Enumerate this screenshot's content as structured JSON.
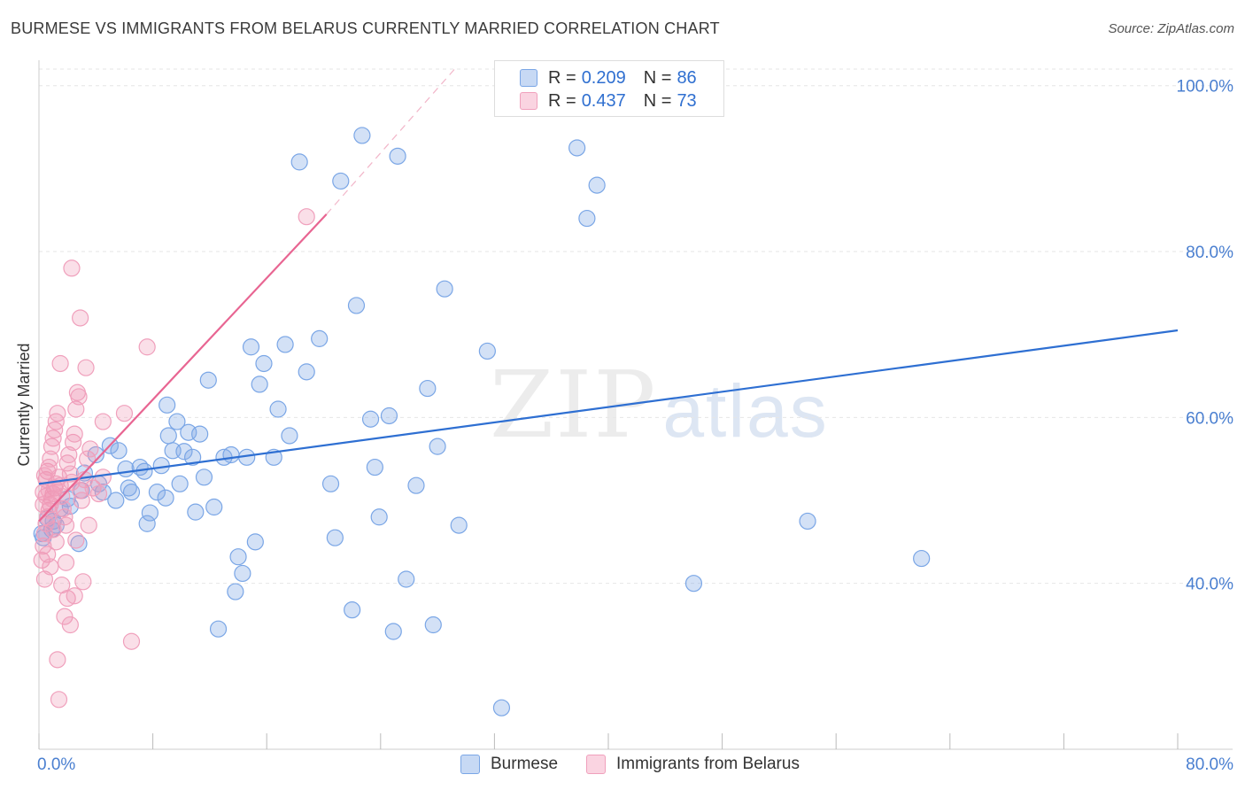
{
  "header": {
    "title": "BURMESE VS IMMIGRANTS FROM BELARUS CURRENTLY MARRIED CORRELATION CHART",
    "source": "Source: ZipAtlas.com"
  },
  "watermark": {
    "zip": "ZIP",
    "atlas": "atlas"
  },
  "legend": {
    "rows": [
      {
        "r_label": "R =",
        "r_value": "0.209",
        "n_label": "N =",
        "n_value": "86"
      },
      {
        "r_label": "R =",
        "r_value": "0.437",
        "n_label": "N =",
        "n_value": "73"
      }
    ]
  },
  "bottom_legend": {
    "items": [
      "Burmese",
      "Immigrants from Belarus"
    ]
  },
  "colors": {
    "blue_fill": "rgba(130,170,230,0.35)",
    "blue_stroke": "#7aa6e6",
    "blue_line": "#2e6fd2",
    "pink_fill": "rgba(240,150,180,0.30)",
    "pink_stroke": "#f0a0bc",
    "pink_line": "#e86592",
    "grid": "#e6e6e6",
    "tick_text": "#4a7fd0"
  },
  "chart_data": {
    "type": "scatter",
    "title": "BURMESE VS IMMIGRANTS FROM BELARUS CURRENTLY MARRIED CORRELATION CHART",
    "xlabel": "",
    "ylabel": "Currently Married",
    "xlim": [
      0,
      80
    ],
    "ylim": [
      20,
      102
    ],
    "x_tick_labels": [
      {
        "value": 0,
        "label": "0.0%"
      },
      {
        "value": 80,
        "label": "80.0%"
      }
    ],
    "y_tick_labels": [
      {
        "value": 40,
        "label": "40.0%"
      },
      {
        "value": 60,
        "label": "60.0%"
      },
      {
        "value": 80,
        "label": "80.0%"
      },
      {
        "value": 100,
        "label": "100.0%"
      }
    ],
    "series": [
      {
        "name": "Burmese",
        "R": 0.209,
        "N": 86,
        "trend": {
          "x": [
            0,
            80
          ],
          "y": [
            52.0,
            70.5
          ]
        },
        "points": [
          [
            0.3,
            45.5
          ],
          [
            0.6,
            47.8
          ],
          [
            0.9,
            46.5
          ],
          [
            1.2,
            47.0
          ],
          [
            1.5,
            49.0
          ],
          [
            2.0,
            50.2
          ],
          [
            2.2,
            49.3
          ],
          [
            3.0,
            51.2
          ],
          [
            3.2,
            53.3
          ],
          [
            4.0,
            55.5
          ],
          [
            4.5,
            51.0
          ],
          [
            5.0,
            56.6
          ],
          [
            5.4,
            50.0
          ],
          [
            5.6,
            56.0
          ],
          [
            6.3,
            51.5
          ],
          [
            6.5,
            51.0
          ],
          [
            7.1,
            54.0
          ],
          [
            7.4,
            53.5
          ],
          [
            7.6,
            47.2
          ],
          [
            7.8,
            48.5
          ],
          [
            8.3,
            51.0
          ],
          [
            8.6,
            54.2
          ],
          [
            8.9,
            50.3
          ],
          [
            9.1,
            57.8
          ],
          [
            9.4,
            56.0
          ],
          [
            9.7,
            59.5
          ],
          [
            9.9,
            52.0
          ],
          [
            10.2,
            55.9
          ],
          [
            10.5,
            58.2
          ],
          [
            10.8,
            55.2
          ],
          [
            11.0,
            48.6
          ],
          [
            11.3,
            58.0
          ],
          [
            11.6,
            52.8
          ],
          [
            11.9,
            64.5
          ],
          [
            12.3,
            49.2
          ],
          [
            12.6,
            34.5
          ],
          [
            13.0,
            55.2
          ],
          [
            13.5,
            55.5
          ],
          [
            13.8,
            39.0
          ],
          [
            14.0,
            43.2
          ],
          [
            14.3,
            41.2
          ],
          [
            14.6,
            55.2
          ],
          [
            14.9,
            68.5
          ],
          [
            15.2,
            45.0
          ],
          [
            15.5,
            64.0
          ],
          [
            15.8,
            66.5
          ],
          [
            16.5,
            55.2
          ],
          [
            16.8,
            61.0
          ],
          [
            17.3,
            68.8
          ],
          [
            17.6,
            57.8
          ],
          [
            18.3,
            90.8
          ],
          [
            18.8,
            65.5
          ],
          [
            19.7,
            69.5
          ],
          [
            20.5,
            52.0
          ],
          [
            20.8,
            45.5
          ],
          [
            21.2,
            88.5
          ],
          [
            22.0,
            36.8
          ],
          [
            22.3,
            73.5
          ],
          [
            22.7,
            94.0
          ],
          [
            23.3,
            59.8
          ],
          [
            23.6,
            54.0
          ],
          [
            23.9,
            48.0
          ],
          [
            24.6,
            60.2
          ],
          [
            24.9,
            34.2
          ],
          [
            25.2,
            91.5
          ],
          [
            25.8,
            40.5
          ],
          [
            26.5,
            51.8
          ],
          [
            27.3,
            63.5
          ],
          [
            27.7,
            35.0
          ],
          [
            28.0,
            56.5
          ],
          [
            28.5,
            75.5
          ],
          [
            29.5,
            47.0
          ],
          [
            31.5,
            68.0
          ],
          [
            32.5,
            25.0
          ],
          [
            37.8,
            92.5
          ],
          [
            38.5,
            84.0
          ],
          [
            39.2,
            88.0
          ],
          [
            46.0,
            40.0
          ],
          [
            54.0,
            47.5
          ],
          [
            62.0,
            43.0
          ],
          [
            0.2,
            46.0
          ],
          [
            1.0,
            47.5
          ],
          [
            2.8,
            44.8
          ],
          [
            6.1,
            53.8
          ],
          [
            9.0,
            61.5
          ],
          [
            4.2,
            52.0
          ]
        ]
      },
      {
        "name": "Immigrants from Belarus",
        "R": 0.437,
        "N": 73,
        "trend": {
          "x": [
            0,
            20.2
          ],
          "y": [
            47.5,
            84.5
          ]
        },
        "trend_extension": {
          "x": [
            20.2,
            29.2
          ],
          "y": [
            84.5,
            102.0
          ]
        },
        "points": [
          [
            0.2,
            42.8
          ],
          [
            0.3,
            44.5
          ],
          [
            0.4,
            46.0
          ],
          [
            0.5,
            47.2
          ],
          [
            0.6,
            48.0
          ],
          [
            0.7,
            48.8
          ],
          [
            0.8,
            49.5
          ],
          [
            0.9,
            50.2
          ],
          [
            1.0,
            50.8
          ],
          [
            1.1,
            51.5
          ],
          [
            1.2,
            52.0
          ],
          [
            0.3,
            51.0
          ],
          [
            0.5,
            52.5
          ],
          [
            0.6,
            53.5
          ],
          [
            0.7,
            54.0
          ],
          [
            0.8,
            55.0
          ],
          [
            0.9,
            56.5
          ],
          [
            1.0,
            57.5
          ],
          [
            1.1,
            58.5
          ],
          [
            1.2,
            59.5
          ],
          [
            1.3,
            60.5
          ],
          [
            1.4,
            52.8
          ],
          [
            1.5,
            51.8
          ],
          [
            1.6,
            50.5
          ],
          [
            1.7,
            49.0
          ],
          [
            1.8,
            48.0
          ],
          [
            1.9,
            47.0
          ],
          [
            2.0,
            54.5
          ],
          [
            2.1,
            55.5
          ],
          [
            2.2,
            53.2
          ],
          [
            2.3,
            52.2
          ],
          [
            2.4,
            57.0
          ],
          [
            2.5,
            58.0
          ],
          [
            2.6,
            61.0
          ],
          [
            2.7,
            63.0
          ],
          [
            2.8,
            62.5
          ],
          [
            2.9,
            51.2
          ],
          [
            3.0,
            50.0
          ],
          [
            3.2,
            52.5
          ],
          [
            3.4,
            55.0
          ],
          [
            3.6,
            56.2
          ],
          [
            3.8,
            51.5
          ],
          [
            4.2,
            50.8
          ],
          [
            4.5,
            52.8
          ],
          [
            0.4,
            40.5
          ],
          [
            0.6,
            43.5
          ],
          [
            0.8,
            42.0
          ],
          [
            1.2,
            45.0
          ],
          [
            1.3,
            30.8
          ],
          [
            1.4,
            26.0
          ],
          [
            1.6,
            39.8
          ],
          [
            1.8,
            36.0
          ],
          [
            2.0,
            38.2
          ],
          [
            2.2,
            35.0
          ],
          [
            2.5,
            38.5
          ],
          [
            1.5,
            66.5
          ],
          [
            2.3,
            78.0
          ],
          [
            2.9,
            72.0
          ],
          [
            3.3,
            66.0
          ],
          [
            3.5,
            47.0
          ],
          [
            4.5,
            59.5
          ],
          [
            6.0,
            60.5
          ],
          [
            6.5,
            33.0
          ],
          [
            7.6,
            68.5
          ],
          [
            18.8,
            84.2
          ],
          [
            0.3,
            49.5
          ],
          [
            0.5,
            50.5
          ],
          [
            0.7,
            51.2
          ],
          [
            1.0,
            46.5
          ],
          [
            0.4,
            53.0
          ],
          [
            1.9,
            42.5
          ],
          [
            2.6,
            45.2
          ],
          [
            3.1,
            40.2
          ]
        ]
      }
    ]
  }
}
